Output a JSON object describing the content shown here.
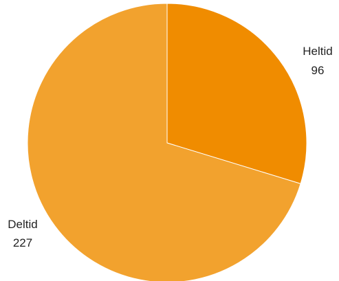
{
  "chart_data": {
    "type": "pie",
    "slices": [
      {
        "label": "Heltid",
        "value": 96,
        "color": "#F08C00"
      },
      {
        "label": "Deltid",
        "value": 227,
        "color": "#F2A22E"
      }
    ],
    "start_angle": "top",
    "direction": "clockwise",
    "legend": "none"
  }
}
